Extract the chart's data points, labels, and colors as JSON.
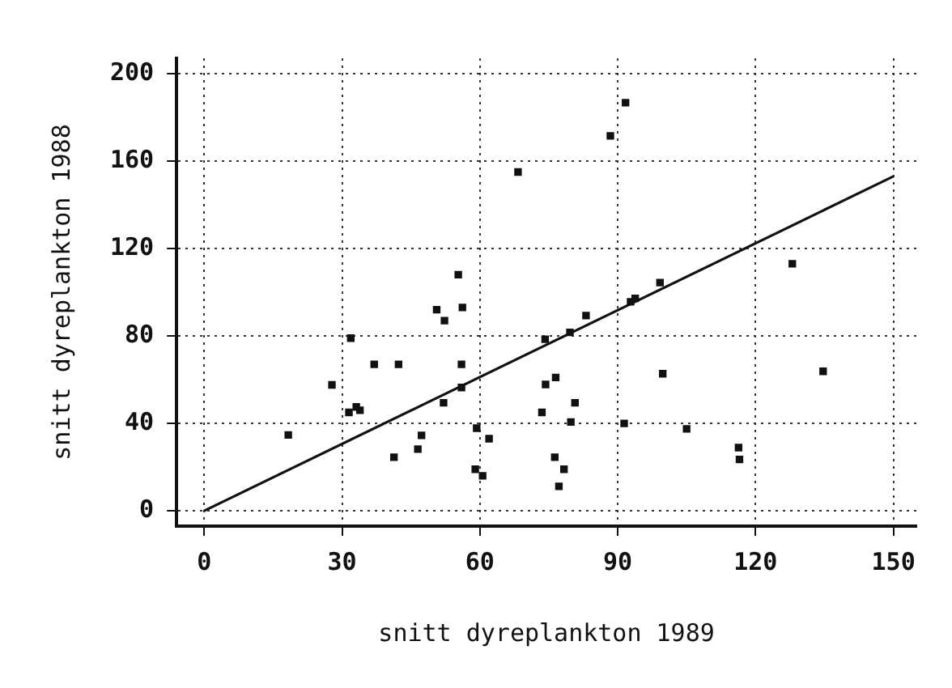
{
  "chart_data": {
    "type": "scatter",
    "xlabel": "snitt dyreplankton 1989",
    "ylabel": "snitt dyreplankton 1988",
    "xlim": [
      -6,
      155
    ],
    "ylim": [
      -7,
      207
    ],
    "xticks": [
      0,
      30,
      60,
      90,
      120,
      150
    ],
    "yticks": [
      0,
      40,
      80,
      120,
      160,
      200
    ],
    "grid": true,
    "legend": false,
    "marker": "square",
    "series": [
      {
        "type": "scatter",
        "color": "#111111",
        "x": [
          68.3,
          55.3,
          50.6,
          56.2,
          52.3,
          31.9,
          37,
          42.3,
          56,
          27.8,
          56,
          52.1,
          33.1,
          33.9,
          31.5,
          18.3,
          47.3,
          46.5,
          41.3,
          59.3,
          62,
          59,
          60.6,
          74.2,
          74.3,
          73.5,
          91.7,
          88.4,
          128,
          99.2,
          93.8,
          92.8,
          83.1,
          79.6,
          76.5,
          80.7,
          99.8,
          134.7,
          79.8,
          91.4,
          105,
          116.3,
          116.5,
          76.3,
          78.3,
          77.2
        ],
        "values": [
          155,
          108,
          92,
          93,
          87,
          79,
          67,
          67,
          67,
          57.6,
          56.4,
          49.4,
          47.5,
          46,
          45,
          34.7,
          34.5,
          28.2,
          24.5,
          37.8,
          33,
          19,
          16,
          78.5,
          57.8,
          45,
          186.7,
          171.5,
          113,
          104.4,
          97.2,
          95.6,
          89.3,
          81.6,
          61,
          49.4,
          62.7,
          63.8,
          40.6,
          40,
          37.5,
          28.9,
          23.5,
          24.5,
          19,
          11.2
        ]
      },
      {
        "type": "line",
        "color": "#111111",
        "line_style": "solid",
        "marker": "none",
        "x": [
          0,
          150
        ],
        "values": [
          0,
          153
        ]
      }
    ]
  }
}
